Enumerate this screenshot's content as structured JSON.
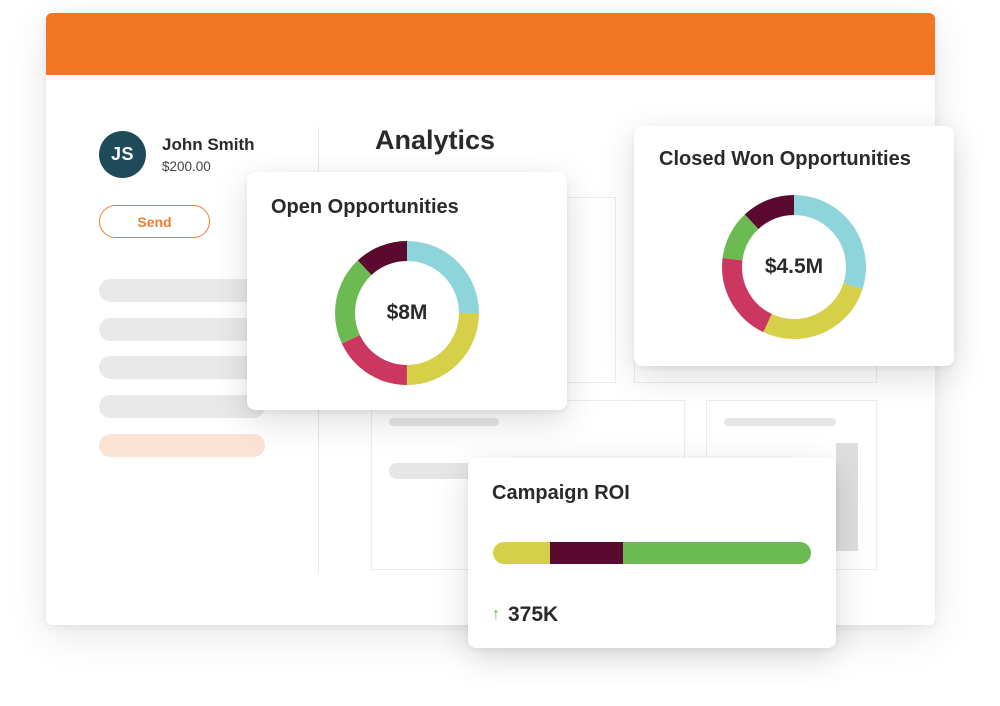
{
  "colors": {
    "accent": "#f07624",
    "avatar_bg": "#1e4a5a",
    "teal": "#8dd5da",
    "yellow": "#d6cf48",
    "crimson": "#cb3760",
    "green": "#6cbb52",
    "plum": "#5a0a2e"
  },
  "contact": {
    "initials": "JS",
    "name": "John Smith",
    "amount": "$200.00",
    "send_label": "Send"
  },
  "analytics": {
    "title": "Analytics"
  },
  "open_opportunities": {
    "title": "Open Opportunities",
    "center_value": "$8M",
    "segments": [
      {
        "color": "#8dd5da",
        "fraction": 0.25
      },
      {
        "color": "#d6cf48",
        "fraction": 0.25
      },
      {
        "color": "#cb3760",
        "fraction": 0.18
      },
      {
        "color": "#6cbb52",
        "fraction": 0.2
      },
      {
        "color": "#5a0a2e",
        "fraction": 0.12
      }
    ]
  },
  "closed_won": {
    "title": "Closed Won Opportunities",
    "center_value": "$4.5M",
    "segments": [
      {
        "color": "#8dd5da",
        "fraction": 0.3
      },
      {
        "color": "#d6cf48",
        "fraction": 0.27
      },
      {
        "color": "#cb3760",
        "fraction": 0.2
      },
      {
        "color": "#6cbb52",
        "fraction": 0.11
      },
      {
        "color": "#5a0a2e",
        "fraction": 0.12
      }
    ]
  },
  "campaign_roi": {
    "title": "Campaign ROI",
    "value": "375K",
    "trend_icon": "arrow-up-icon",
    "bar_segments": [
      {
        "color": "#d6cf48",
        "fraction": 0.18
      },
      {
        "color": "#5a0a2e",
        "fraction": 0.23
      },
      {
        "color": "#6cbb52",
        "fraction": 0.59
      }
    ]
  }
}
